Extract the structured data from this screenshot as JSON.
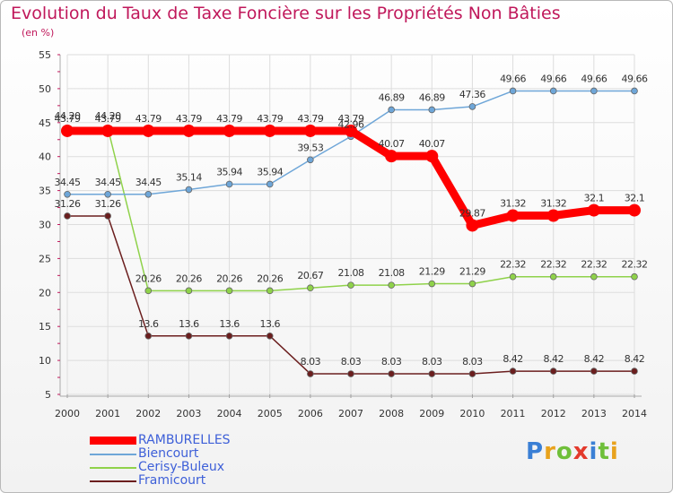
{
  "title": "Evolution du Taux de Taxe Foncière sur les Propriétés Non Bâties",
  "unit_label": "(en %)",
  "logo": {
    "text": "Proxiti",
    "letter_colors": [
      "#3a7fd5",
      "#e8a21c",
      "#6fbf3a",
      "#e33a2c",
      "#3a7fd5",
      "#6fbf3a",
      "#e8a21c"
    ]
  },
  "chart_data": {
    "type": "line",
    "x": [
      "2000",
      "2001",
      "2002",
      "2003",
      "2004",
      "2005",
      "2006",
      "2007",
      "2008",
      "2009",
      "2010",
      "2011",
      "2012",
      "2013",
      "2014"
    ],
    "ylim": [
      5,
      55
    ],
    "yticks": [
      "5",
      "10",
      "15",
      "20",
      "25",
      "30",
      "35",
      "40",
      "45",
      "50",
      "55"
    ],
    "grid": true,
    "legend_position": "bottom-left",
    "series": [
      {
        "name": "RAMBURELLES",
        "color": "#ff0000",
        "values": [
          43.79,
          43.79,
          43.79,
          43.79,
          43.79,
          43.79,
          43.79,
          43.79,
          40.07,
          40.07,
          29.87,
          31.32,
          31.32,
          32.1,
          32.1
        ],
        "labels": [
          "43.79",
          "43.79",
          "43.79",
          "43.79",
          "43.79",
          "43.79",
          "43.79",
          "43.79",
          "40.07",
          "40.07",
          "29.87",
          "31.32",
          "31.32",
          "32.1",
          "32.1"
        ]
      },
      {
        "name": "Biencourt",
        "color": "#6ea6d8",
        "values": [
          34.45,
          34.45,
          34.45,
          35.14,
          35.94,
          35.94,
          39.53,
          42.96,
          46.89,
          46.89,
          47.36,
          49.66,
          49.66,
          49.66,
          49.66
        ],
        "labels": [
          "34.45",
          "34.45",
          "34.45",
          "35.14",
          "35.94",
          "35.94",
          "39.53",
          "42.96",
          "46.89",
          "46.89",
          "47.36",
          "49.66",
          "49.66",
          "49.66",
          "49.66"
        ]
      },
      {
        "name": "Cerisy-Buleux",
        "color": "#8fd24a",
        "values": [
          44.2,
          44.2,
          20.26,
          20.26,
          20.26,
          20.26,
          20.67,
          21.08,
          21.08,
          21.29,
          21.29,
          22.32,
          22.32,
          22.32,
          22.32
        ],
        "labels": [
          "44.20",
          "44.20",
          "20.26",
          "20.26",
          "20.26",
          "20.26",
          "20.67",
          "21.08",
          "21.08",
          "21.29",
          "21.29",
          "22.32",
          "22.32",
          "22.32",
          "22.32"
        ]
      },
      {
        "name": "Framicourt",
        "color": "#6b1e1e",
        "values": [
          31.26,
          31.26,
          13.6,
          13.6,
          13.6,
          13.6,
          8.03,
          8.03,
          8.03,
          8.03,
          8.03,
          8.42,
          8.42,
          8.42,
          8.42
        ],
        "labels": [
          "31.26",
          "31.26",
          "13.6",
          "13.6",
          "13.6",
          "13.6",
          "8.03",
          "8.03",
          "8.03",
          "8.03",
          "8.03",
          "8.42",
          "8.42",
          "8.42",
          "8.42"
        ]
      }
    ]
  }
}
